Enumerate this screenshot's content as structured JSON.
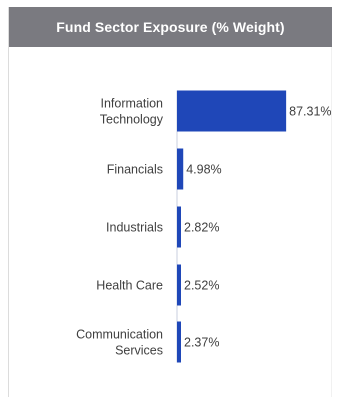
{
  "chart_data": {
    "type": "bar",
    "orientation": "horizontal",
    "title": "Fund Sector Exposure (% Weight)",
    "categories": [
      "Information Technology",
      "Financials",
      "Industrials",
      "Health Care",
      "Communication Services"
    ],
    "category_lines": [
      [
        "Information",
        "Technology"
      ],
      [
        "Financials"
      ],
      [
        "Industrials"
      ],
      [
        "Health Care"
      ],
      [
        "Communication",
        "Services"
      ]
    ],
    "values": [
      87.31,
      4.98,
      2.82,
      2.52,
      2.37
    ],
    "value_labels": [
      "87.31%",
      "4.98%",
      "2.82%",
      "2.52%",
      "2.37%"
    ],
    "xlim": [
      0,
      100
    ],
    "grid": false,
    "legend": "none"
  },
  "colors": {
    "header_bg": "#7a7a80",
    "header_text": "#ffffff",
    "bar": "#1f47b8",
    "label_text": "#3f3f3f"
  }
}
